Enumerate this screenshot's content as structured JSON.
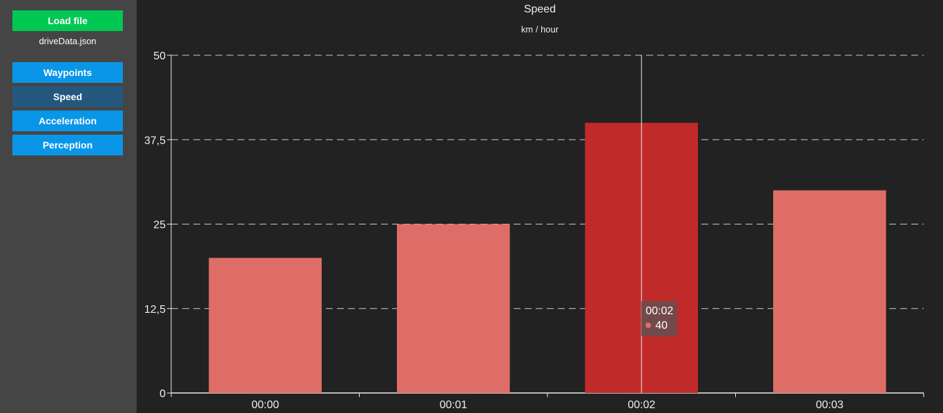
{
  "sidebar": {
    "load_button": "Load file",
    "file_name": "driveData.json",
    "nav": [
      {
        "label": "Waypoints",
        "active": false
      },
      {
        "label": "Speed",
        "active": true
      },
      {
        "label": "Acceleration",
        "active": false
      },
      {
        "label": "Perception",
        "active": false
      }
    ]
  },
  "colors": {
    "bar": "#df6d67",
    "bar_highlight": "#c02b29",
    "load_button": "#00c853",
    "nav_button": "#0a96e8",
    "nav_active": "#23577e"
  },
  "chart_data": {
    "type": "bar",
    "title": "Speed",
    "subtitle": "km / hour",
    "categories": [
      "00:00",
      "00:01",
      "00:02",
      "00:03"
    ],
    "values": [
      20,
      25,
      40,
      30
    ],
    "yticks": [
      "0",
      "12,5",
      "25",
      "37,5",
      "50"
    ],
    "ylim": [
      0,
      50
    ],
    "grid": true,
    "highlighted_index": 2,
    "tooltip": {
      "label": "00:02",
      "value": "40"
    }
  }
}
